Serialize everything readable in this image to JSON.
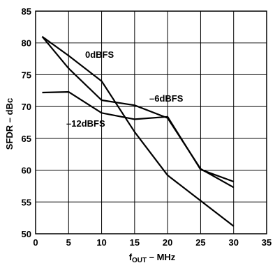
{
  "chart_data": {
    "type": "line",
    "xlabel": "fOUT – MHz",
    "xlabel_parts": {
      "main": "f",
      "sub": "OUT",
      "rest": " – MHz"
    },
    "ylabel": "SFDR – dBc",
    "xlim": [
      0,
      35
    ],
    "ylim": [
      50,
      85
    ],
    "x_ticks": [
      0,
      5,
      10,
      15,
      20,
      25,
      30,
      35
    ],
    "y_ticks": [
      50,
      55,
      60,
      65,
      70,
      75,
      80,
      85
    ],
    "grid": true,
    "legend": "none",
    "series": [
      {
        "name": "0dBFS",
        "x": [
          1,
          5,
          10,
          15,
          20,
          25,
          30
        ],
        "values": [
          81.0,
          78.0,
          74.0,
          66.0,
          59.2,
          55.2,
          51.2
        ]
      },
      {
        "name": "–6dBFS",
        "x": [
          1,
          5,
          10,
          15,
          20,
          25,
          30
        ],
        "values": [
          81.0,
          76.0,
          71.0,
          70.2,
          68.2,
          60.2,
          57.3
        ]
      },
      {
        "name": "–12dBFS",
        "x": [
          1,
          5,
          10,
          15,
          20,
          25,
          30
        ],
        "values": [
          72.2,
          72.3,
          69.0,
          68.0,
          68.4,
          60.1,
          58.2
        ]
      }
    ]
  }
}
